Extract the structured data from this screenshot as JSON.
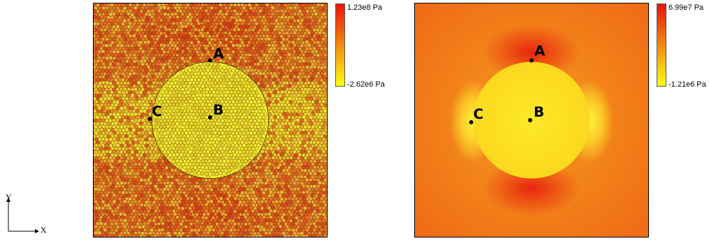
{
  "panels": [
    {
      "name": "left",
      "colorbar": {
        "max": "1.23e8 Pa",
        "min": "-2.62e6 Pa",
        "colors": [
          "#e8140c",
          "#ffff10"
        ]
      },
      "points": {
        "A": "A",
        "B": "B",
        "C": "C"
      }
    },
    {
      "name": "right",
      "colorbar": {
        "max": "6.99e7 Pa",
        "min": "-1.21e6 Pa",
        "colors": [
          "#e8140c",
          "#ffff10"
        ]
      },
      "points": {
        "A": "A",
        "B": "B",
        "C": "C"
      }
    }
  ],
  "axes": {
    "x": "X",
    "y": "Y"
  }
}
